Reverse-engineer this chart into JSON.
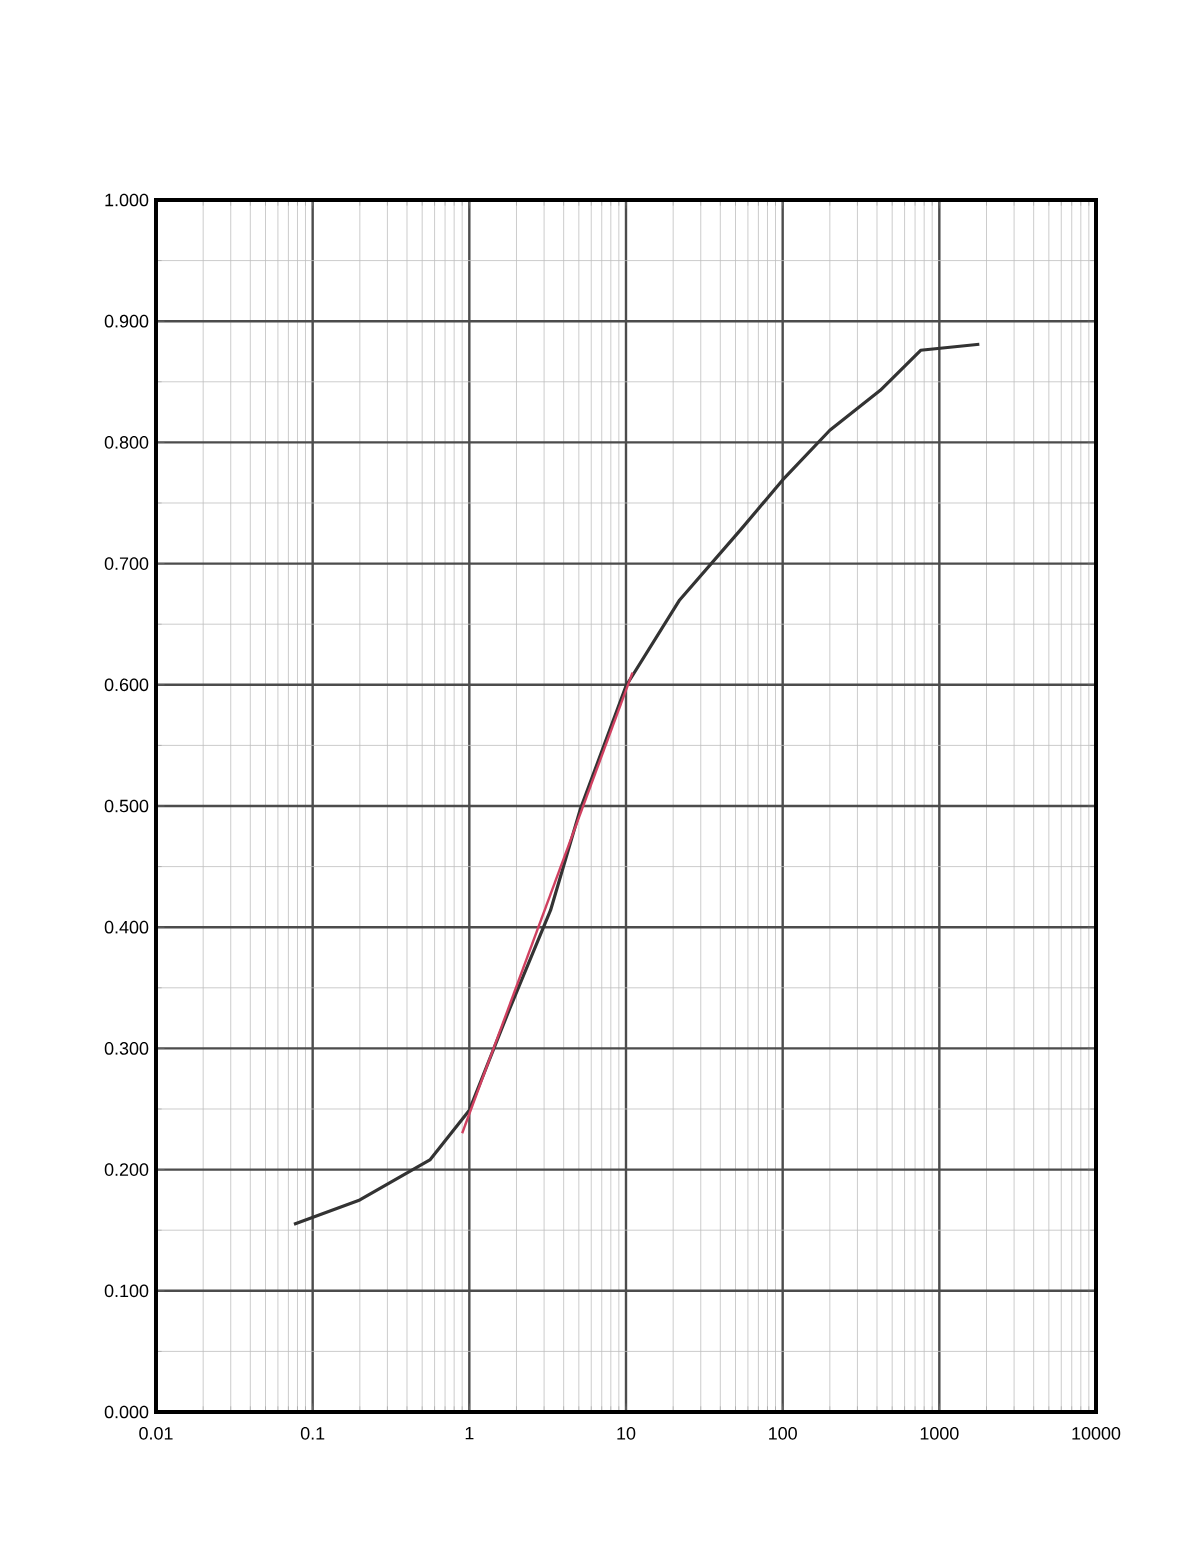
{
  "chart_data": {
    "type": "line",
    "log": "x",
    "xlim": [
      0.01,
      10000
    ],
    "xticks": [
      0.01,
      0.1,
      1,
      10,
      100,
      1000,
      10000
    ],
    "ylim": [
      0,
      1
    ],
    "yticks": [
      {
        "value": 0,
        "label": "0.000"
      },
      {
        "value": 0.1,
        "label": "0.100"
      },
      {
        "value": 0.2,
        "label": "0.200"
      },
      {
        "value": 0.3,
        "label": "0.300"
      },
      {
        "value": 0.4,
        "label": "0.400"
      },
      {
        "value": 0.5,
        "label": "0.500"
      },
      {
        "value": 0.6,
        "label": "0.600"
      },
      {
        "value": 0.7,
        "label": "0.700"
      },
      {
        "value": 0.8,
        "label": "0.800"
      },
      {
        "value": 0.9,
        "label": "0.900"
      },
      {
        "value": 1,
        "label": "1.000"
      }
    ],
    "grid": true,
    "series": [
      {
        "color": "#333333",
        "x": [
          0.076,
          0.2,
          0.56,
          1.0,
          1.8,
          3.3,
          5.1,
          10,
          22,
          54,
          100,
          200,
          420,
          760,
          1800
        ],
        "values": [
          0.155,
          0.175,
          0.208,
          0.249,
          0.332,
          0.414,
          0.497,
          0.599,
          0.67,
          0.728,
          0.769,
          0.81,
          0.843,
          0.876,
          0.881
        ]
      },
      {
        "color": "#d04060",
        "x": [
          0.9,
          11
        ],
        "values": [
          0.23,
          0.61
        ]
      }
    ]
  }
}
